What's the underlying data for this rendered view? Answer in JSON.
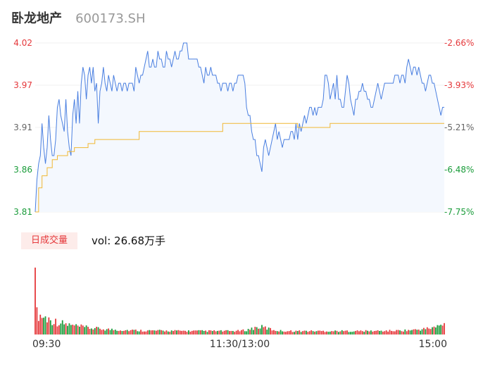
{
  "header": {
    "name": "卧龙地产",
    "code": "600173.SH"
  },
  "volume_panel": {
    "tag": "日成交量",
    "vol_label": "vol: 26.68万手"
  },
  "colors": {
    "up": "#e5383b",
    "down": "#1a9c3a",
    "price_line": "#4a7fe0",
    "avg_line": "#f0b733",
    "fill": "#f4f8fe"
  },
  "chart_data": [
    {
      "type": "line",
      "title": "",
      "x_ticks": [
        "09:30",
        "11:30/13:00",
        "15:00"
      ],
      "y_ticks_left": [
        "4.02",
        "3.97",
        "3.91",
        "3.86",
        "3.81"
      ],
      "y_ticks_right": [
        "-2.66%",
        "-3.93%",
        "-5.21%",
        "-6.48%",
        "-7.75%"
      ],
      "ylim": [
        3.81,
        4.02
      ],
      "x_points": 241,
      "series": [
        {
          "role": "price",
          "points": [
            [
              0,
              3.81
            ],
            [
              1,
              3.85
            ],
            [
              2,
              3.87
            ],
            [
              3,
              3.88
            ],
            [
              4,
              3.92
            ],
            [
              5,
              3.89
            ],
            [
              6,
              3.87
            ],
            [
              7,
              3.89
            ],
            [
              8,
              3.93
            ],
            [
              9,
              3.9
            ],
            [
              10,
              3.88
            ],
            [
              11,
              3.88
            ],
            [
              12,
              3.9
            ],
            [
              13,
              3.94
            ],
            [
              14,
              3.95
            ],
            [
              15,
              3.93
            ],
            [
              16,
              3.92
            ],
            [
              17,
              3.91
            ],
            [
              18,
              3.95
            ],
            [
              19,
              3.91
            ],
            [
              20,
              3.89
            ],
            [
              21,
              3.88
            ],
            [
              22,
              3.93
            ],
            [
              23,
              3.95
            ],
            [
              24,
              3.92
            ],
            [
              25,
              3.96
            ],
            [
              26,
              3.92
            ],
            [
              27,
              3.97
            ],
            [
              28,
              3.99
            ],
            [
              29,
              3.98
            ],
            [
              30,
              3.95
            ],
            [
              31,
              3.98
            ],
            [
              32,
              3.99
            ],
            [
              33,
              3.97
            ],
            [
              34,
              3.99
            ],
            [
              35,
              3.96
            ],
            [
              36,
              3.97
            ],
            [
              37,
              3.92
            ],
            [
              38,
              3.96
            ],
            [
              39,
              3.97
            ],
            [
              40,
              3.99
            ],
            [
              41,
              3.97
            ],
            [
              42,
              3.96
            ],
            [
              43,
              3.98
            ],
            [
              44,
              3.97
            ],
            [
              45,
              3.96
            ],
            [
              46,
              3.98
            ],
            [
              47,
              3.97
            ],
            [
              48,
              3.96
            ],
            [
              49,
              3.97
            ],
            [
              50,
              3.97
            ],
            [
              51,
              3.96
            ],
            [
              52,
              3.97
            ],
            [
              53,
              3.97
            ],
            [
              54,
              3.96
            ],
            [
              55,
              3.97
            ],
            [
              56,
              3.97
            ],
            [
              57,
              3.97
            ],
            [
              58,
              3.96
            ],
            [
              59,
              3.99
            ],
            [
              60,
              3.98
            ],
            [
              61,
              3.97
            ],
            [
              62,
              3.98
            ],
            [
              63,
              3.98
            ],
            [
              64,
              3.99
            ],
            [
              65,
              4.0
            ],
            [
              66,
              4.01
            ],
            [
              67,
              3.99
            ],
            [
              68,
              3.99
            ],
            [
              69,
              4.0
            ],
            [
              70,
              3.99
            ],
            [
              71,
              3.99
            ],
            [
              72,
              4.01
            ],
            [
              73,
              4.0
            ],
            [
              74,
              4.0
            ],
            [
              75,
              3.99
            ],
            [
              76,
              3.99
            ],
            [
              77,
              4.01
            ],
            [
              78,
              4.0
            ],
            [
              79,
              4.0
            ],
            [
              80,
              3.99
            ],
            [
              81,
              4.0
            ],
            [
              82,
              4.01
            ],
            [
              83,
              4.0
            ],
            [
              84,
              4.0
            ],
            [
              85,
              4.01
            ],
            [
              86,
              4.01
            ],
            [
              87,
              4.02
            ],
            [
              88,
              4.02
            ],
            [
              89,
              4.02
            ],
            [
              90,
              4.0
            ],
            [
              91,
              4.0
            ],
            [
              92,
              4.0
            ],
            [
              93,
              4.0
            ],
            [
              94,
              4.0
            ],
            [
              95,
              4.0
            ],
            [
              96,
              3.99
            ],
            [
              97,
              3.99
            ],
            [
              98,
              3.98
            ],
            [
              99,
              3.97
            ],
            [
              100,
              3.99
            ],
            [
              101,
              3.98
            ],
            [
              102,
              3.98
            ],
            [
              103,
              3.99
            ],
            [
              104,
              3.98
            ],
            [
              105,
              3.98
            ],
            [
              106,
              3.98
            ],
            [
              107,
              3.97
            ],
            [
              108,
              3.97
            ],
            [
              109,
              3.96
            ],
            [
              110,
              3.97
            ],
            [
              111,
              3.97
            ],
            [
              112,
              3.97
            ],
            [
              113,
              3.96
            ],
            [
              114,
              3.97
            ],
            [
              115,
              3.97
            ],
            [
              116,
              3.96
            ],
            [
              117,
              3.97
            ],
            [
              118,
              3.97
            ],
            [
              119,
              3.98
            ],
            [
              120,
              3.98
            ],
            [
              121,
              3.98
            ],
            [
              122,
              3.98
            ],
            [
              123,
              3.97
            ],
            [
              124,
              3.94
            ],
            [
              125,
              3.93
            ],
            [
              126,
              3.93
            ],
            [
              127,
              3.91
            ],
            [
              128,
              3.9
            ],
            [
              129,
              3.9
            ],
            [
              130,
              3.88
            ],
            [
              131,
              3.88
            ],
            [
              132,
              3.87
            ],
            [
              133,
              3.86
            ],
            [
              134,
              3.89
            ],
            [
              135,
              3.9
            ],
            [
              136,
              3.89
            ],
            [
              137,
              3.88
            ],
            [
              138,
              3.89
            ],
            [
              139,
              3.9
            ],
            [
              140,
              3.91
            ],
            [
              141,
              3.92
            ],
            [
              142,
              3.9
            ],
            [
              143,
              3.91
            ],
            [
              144,
              3.9
            ],
            [
              145,
              3.89
            ],
            [
              146,
              3.9
            ],
            [
              147,
              3.9
            ],
            [
              148,
              3.9
            ],
            [
              149,
              3.9
            ],
            [
              150,
              3.91
            ],
            [
              151,
              3.91
            ],
            [
              152,
              3.9
            ],
            [
              153,
              3.92
            ],
            [
              154,
              3.9
            ],
            [
              155,
              3.92
            ],
            [
              156,
              3.91
            ],
            [
              157,
              3.92
            ],
            [
              158,
              3.93
            ],
            [
              159,
              3.92
            ],
            [
              160,
              3.93
            ],
            [
              161,
              3.94
            ],
            [
              162,
              3.94
            ],
            [
              163,
              3.93
            ],
            [
              164,
              3.94
            ],
            [
              165,
              3.93
            ],
            [
              166,
              3.94
            ],
            [
              167,
              3.94
            ],
            [
              168,
              3.94
            ],
            [
              169,
              3.95
            ],
            [
              170,
              3.98
            ],
            [
              171,
              3.98
            ],
            [
              172,
              3.97
            ],
            [
              173,
              3.95
            ],
            [
              174,
              3.96
            ],
            [
              175,
              3.97
            ],
            [
              176,
              3.95
            ],
            [
              177,
              3.98
            ],
            [
              178,
              3.95
            ],
            [
              179,
              3.95
            ],
            [
              180,
              3.94
            ],
            [
              181,
              3.94
            ],
            [
              182,
              3.96
            ],
            [
              183,
              3.98
            ],
            [
              184,
              3.97
            ],
            [
              185,
              3.95
            ],
            [
              186,
              3.94
            ],
            [
              187,
              3.93
            ],
            [
              188,
              3.95
            ],
            [
              189,
              3.95
            ],
            [
              190,
              3.96
            ],
            [
              191,
              3.96
            ],
            [
              192,
              3.97
            ],
            [
              193,
              3.96
            ],
            [
              194,
              3.96
            ],
            [
              195,
              3.95
            ],
            [
              196,
              3.95
            ],
            [
              197,
              3.94
            ],
            [
              198,
              3.94
            ],
            [
              199,
              3.95
            ],
            [
              200,
              3.96
            ],
            [
              201,
              3.97
            ],
            [
              202,
              3.96
            ],
            [
              203,
              3.95
            ],
            [
              204,
              3.96
            ],
            [
              205,
              3.97
            ],
            [
              206,
              3.97
            ],
            [
              207,
              3.97
            ],
            [
              208,
              3.97
            ],
            [
              209,
              3.97
            ],
            [
              210,
              3.97
            ],
            [
              211,
              3.98
            ],
            [
              212,
              3.98
            ],
            [
              213,
              3.98
            ],
            [
              214,
              3.97
            ],
            [
              215,
              3.98
            ],
            [
              216,
              3.98
            ],
            [
              217,
              3.97
            ],
            [
              218,
              3.99
            ],
            [
              219,
              4.0
            ],
            [
              220,
              3.99
            ],
            [
              221,
              3.98
            ],
            [
              222,
              3.99
            ],
            [
              223,
              3.99
            ],
            [
              224,
              3.98
            ],
            [
              225,
              3.99
            ],
            [
              226,
              3.98
            ],
            [
              227,
              3.97
            ],
            [
              228,
              3.97
            ],
            [
              229,
              3.96
            ],
            [
              230,
              3.97
            ],
            [
              231,
              3.98
            ],
            [
              232,
              3.98
            ],
            [
              233,
              3.97
            ],
            [
              234,
              3.97
            ],
            [
              235,
              3.96
            ],
            [
              236,
              3.95
            ],
            [
              237,
              3.94
            ],
            [
              238,
              3.93
            ],
            [
              239,
              3.94
            ],
            [
              240,
              3.94
            ]
          ]
        },
        {
          "role": "average",
          "points": [
            [
              0,
              3.81
            ],
            [
              2,
              3.84
            ],
            [
              4,
              3.855
            ],
            [
              7,
              3.865
            ],
            [
              10,
              3.875
            ],
            [
              13,
              3.88
            ],
            [
              19,
              3.885
            ],
            [
              23,
              3.89
            ],
            [
              31,
              3.895
            ],
            [
              35,
              3.9
            ],
            [
              56,
              3.9
            ],
            [
              61,
              3.91
            ],
            [
              109,
              3.91
            ],
            [
              110,
              3.92
            ],
            [
              153,
              3.92
            ],
            [
              154,
              3.915
            ],
            [
              172,
              3.915
            ],
            [
              173,
              3.92
            ],
            [
              240,
              3.92
            ]
          ]
        }
      ]
    },
    {
      "type": "bar",
      "title": "",
      "x_points": 241,
      "bar_count": 241,
      "peak_bar_index": 0
    }
  ]
}
